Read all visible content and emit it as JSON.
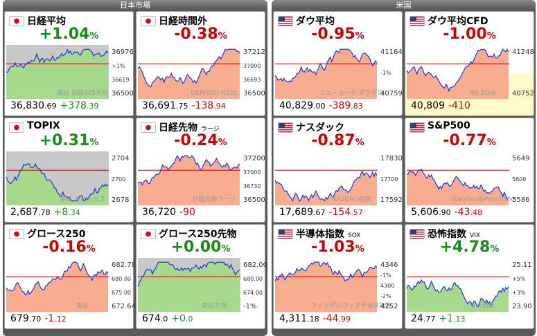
{
  "markets": [
    {
      "title": "日本市場",
      "cards": [
        {
          "name": "日経平均",
          "pct": "+1.04",
          "pct_unit": "%",
          "levels": [
            "36976",
            "+1%",
            "36619",
            "36500"
          ],
          "watermark": "東証 日経225平均",
          "price": "36,830",
          "price_dec": ".69",
          "change": "+378",
          "change_dec": ".39"
        },
        {
          "name": "日経時間外",
          "pct": "-0.38",
          "pct_unit": "%",
          "levels": [
            "37212",
            "37000",
            "36693",
            "36500"
          ],
          "watermark": "DERIVED N225",
          "price": "36,691",
          "price_dec": ".75",
          "change": "-138",
          "change_dec": ".94"
        },
        {
          "name": "TOPIX",
          "pct": "+0.31",
          "pct_unit": "%",
          "levels": [
            "2704",
            "2700",
            "2678"
          ],
          "watermark": "東証 トピックス",
          "price": "2,687",
          "price_dec": ".78",
          "change": "+8",
          "change_dec": ".34"
        },
        {
          "name": "日経先物",
          "sub": "ラージ",
          "pct": "-0.24",
          "pct_unit": "%",
          "levels": [
            "37200",
            "37000",
            "36730",
            "36500"
          ],
          "watermark": "日経先物ラージ",
          "price": "36,720",
          "change": "-90"
        },
        {
          "name": "グロース250",
          "pct": "-0.16",
          "pct_unit": "%",
          "levels": [
            "682.78",
            "680.00",
            "675.00",
            "672.64"
          ],
          "watermark": "東証",
          "price": "679",
          "price_dec": ".70",
          "change": "-1",
          "change_dec": ".12"
        },
        {
          "name": "グロース250先物",
          "pct": "+0.00",
          "pct_unit": "%",
          "levels": [
            "682.00",
            "680.00",
            "674.00",
            "-1%"
          ],
          "watermark": "東証先物",
          "price": "674",
          "price_dec": ".0",
          "change": "+0",
          "change_dec": ".0"
        }
      ]
    },
    {
      "title": "米国",
      "cards": [
        {
          "name": "ダウ平均",
          "pct": "-0.95",
          "pct_unit": "%",
          "levels": [
            "41164",
            "-1%",
            "40759"
          ],
          "watermark": "ニューヨーク ダウ平均",
          "price": "40,829",
          "price_dec": ".00",
          "change": "-389",
          "change_dec": ".83"
        },
        {
          "name": "ダウ平均CFD",
          "pct": "-1.00",
          "pct_unit": "%",
          "levels": [
            "41248",
            "40752"
          ],
          "watermark": "NY DOW",
          "price": "40,809",
          "change": "-410"
        },
        {
          "name": "ナスダック",
          "pct": "-0.87",
          "pct_unit": "%",
          "levels": [
            "17830",
            "17700",
            "17592"
          ],
          "watermark": "NASDAQ指数",
          "price": "17,689",
          "price_dec": ".67",
          "change": "-154",
          "change_dec": ".57"
        },
        {
          "name": "S&P500",
          "pct": "-0.77",
          "pct_unit": "%",
          "levels": [
            "5649",
            "5600",
            "5586"
          ],
          "watermark": "Standard&Poor's500",
          "price": "5,606",
          "price_dec": ".90",
          "change": "-43",
          "change_dec": ".48"
        },
        {
          "name": "半導体指数",
          "sub": "SOX",
          "pct": "-1.03",
          "pct_unit": "%",
          "levels": [
            "4346",
            "-1%",
            "4300",
            "-2%",
            "4252"
          ],
          "watermark": "フィラデルフィア半導体指数",
          "price": "4,311",
          "price_dec": ".18",
          "change": "-44",
          "change_dec": ".99"
        },
        {
          "name": "恐怖指数",
          "sub": "VIX",
          "pct": "+4.78",
          "pct_unit": "%",
          "levels": [
            "25.11",
            "+5%",
            "+3%",
            "23.90"
          ],
          "watermark": "VIX指数",
          "price": "24",
          "price_dec": ".77",
          "change": "+1",
          "change_dec": ".13"
        }
      ]
    }
  ]
}
